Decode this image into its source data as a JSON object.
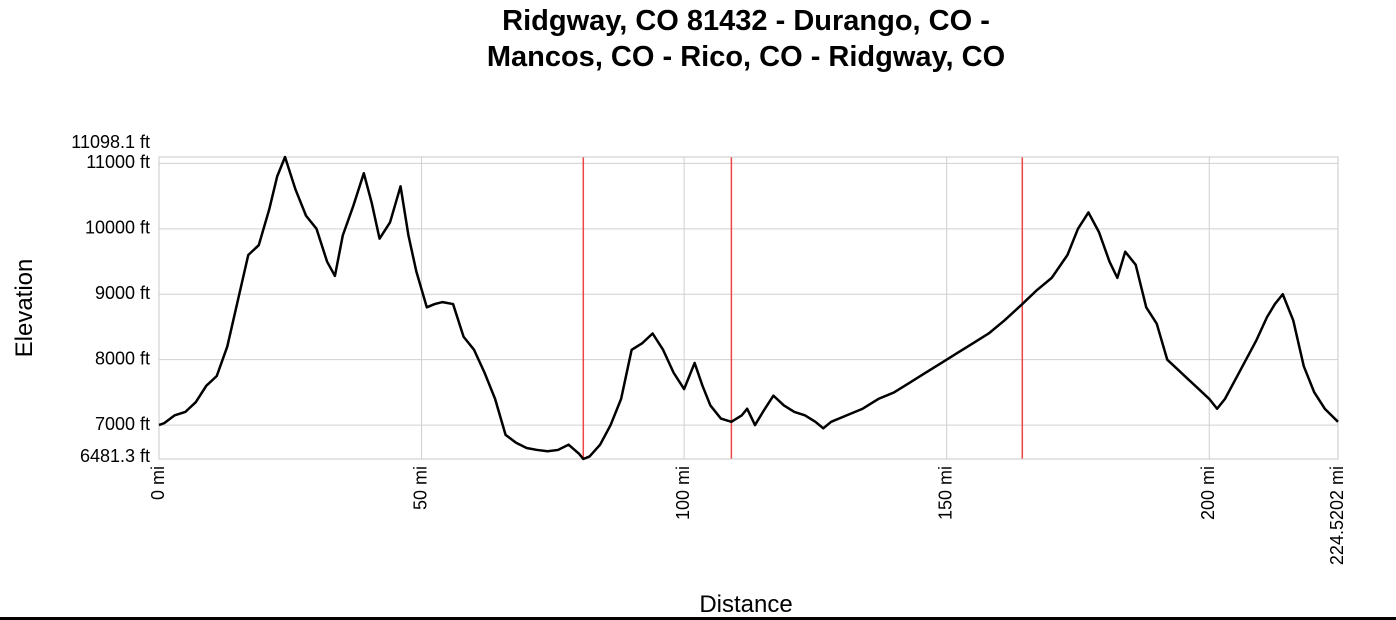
{
  "chart_data": {
    "type": "line",
    "title_lines": [
      "Ridgway, CO 81432 - Durango, CO -",
      "Mancos, CO - Rico, CO - Ridgway, CO"
    ],
    "xlabel": "Distance",
    "ylabel": "Elevation",
    "xlim": [
      0,
      224.5202
    ],
    "ylim": [
      6481.3,
      11098.1
    ],
    "x_ticks": [
      {
        "value": 0,
        "label": "0 mi"
      },
      {
        "value": 50,
        "label": "50 mi"
      },
      {
        "value": 100,
        "label": "100 mi"
      },
      {
        "value": 150,
        "label": "150 mi"
      },
      {
        "value": 200,
        "label": "200 mi"
      },
      {
        "value": 224.5202,
        "label": "224.5202 mi"
      }
    ],
    "y_ticks": [
      {
        "value": 7000,
        "label": "7000 ft",
        "grid": true
      },
      {
        "value": 8000,
        "label": "8000 ft",
        "grid": true
      },
      {
        "value": 9000,
        "label": "9000 ft",
        "grid": true
      },
      {
        "value": 10000,
        "label": "10000 ft",
        "grid": true
      },
      {
        "value": 11000,
        "label": "11000 ft",
        "grid": true
      }
    ],
    "y_extremes": [
      {
        "value": 6481.3,
        "label": "6481.3 ft"
      },
      {
        "value": 11098.1,
        "label": "11098.1 ft"
      }
    ],
    "waypoints_x": [
      80.8,
      109.0,
      164.4
    ],
    "grid": true,
    "colors": {
      "line": "#000000",
      "grid": "#d0d0d0",
      "waypoint": "#ee4444",
      "frame": "#c8c8c8"
    },
    "series": [
      {
        "x": [
          0,
          1,
          3,
          5,
          7,
          9,
          11,
          13,
          15,
          17,
          19,
          21,
          22.5,
          24,
          26,
          28,
          30,
          32,
          33.5,
          35,
          37,
          39,
          40.5,
          42,
          44,
          46,
          47.5,
          49,
          51,
          52.5,
          54,
          56,
          58,
          60,
          62,
          64,
          66,
          68,
          70,
          72,
          74,
          76,
          78,
          80,
          80.8,
          82,
          84,
          86,
          88,
          90,
          92,
          94,
          96,
          98,
          100,
          102,
          103.5,
          105,
          107,
          109,
          111,
          112,
          113.5,
          115,
          117,
          119,
          121,
          123,
          125,
          126.5,
          128,
          131,
          134,
          137,
          140,
          143,
          146,
          149,
          152,
          155,
          158,
          161,
          164.4,
          167,
          170,
          173,
          175,
          177,
          179,
          181,
          182.5,
          184,
          186,
          188,
          190,
          192,
          194,
          196,
          198,
          200,
          201.5,
          203,
          205,
          207,
          209,
          211,
          212.5,
          214,
          216,
          218,
          220,
          222,
          224.5202
        ],
        "y": [
          7000,
          7030,
          7150,
          7200,
          7350,
          7600,
          7750,
          8200,
          8900,
          9600,
          9750,
          10300,
          10800,
          11098,
          10600,
          10200,
          10000,
          9500,
          9280,
          9900,
          10350,
          10850,
          10400,
          9850,
          10100,
          10650,
          9900,
          9350,
          8800,
          8850,
          8880,
          8850,
          8350,
          8150,
          7800,
          7400,
          6850,
          6730,
          6650,
          6620,
          6600,
          6620,
          6700,
          6560,
          6481,
          6520,
          6700,
          7000,
          7400,
          8150,
          8250,
          8400,
          8150,
          7800,
          7550,
          7950,
          7600,
          7300,
          7100,
          7050,
          7150,
          7250,
          7000,
          7200,
          7450,
          7300,
          7200,
          7150,
          7050,
          6950,
          7050,
          7150,
          7250,
          7400,
          7500,
          7650,
          7800,
          7950,
          8100,
          8250,
          8400,
          8600,
          8850,
          9050,
          9250,
          9600,
          10000,
          10250,
          9950,
          9500,
          9250,
          9650,
          9450,
          8800,
          8550,
          8000,
          7850,
          7700,
          7550,
          7400,
          7250,
          7400,
          7700,
          8000,
          8300,
          8650,
          8850,
          9000,
          8600,
          7900,
          7500,
          7250,
          7050
        ]
      }
    ]
  }
}
